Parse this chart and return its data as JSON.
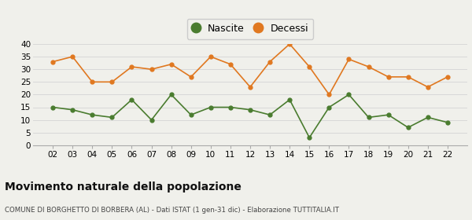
{
  "years": [
    2,
    3,
    4,
    5,
    6,
    7,
    8,
    9,
    10,
    11,
    12,
    13,
    14,
    15,
    16,
    17,
    18,
    19,
    20,
    21,
    22
  ],
  "nascite": [
    15,
    14,
    12,
    11,
    18,
    10,
    20,
    12,
    15,
    15,
    14,
    12,
    18,
    3,
    15,
    20,
    11,
    12,
    7,
    11,
    9
  ],
  "decessi": [
    33,
    35,
    25,
    25,
    31,
    30,
    32,
    27,
    35,
    32,
    23,
    33,
    40,
    31,
    20,
    34,
    31,
    27,
    27,
    23,
    27
  ],
  "nascite_color": "#4a7c2f",
  "decessi_color": "#e07820",
  "background_color": "#f0f0eb",
  "grid_color": "#d8d8d8",
  "title": "Movimento naturale della popolazione",
  "subtitle": "COMUNE DI BORGHETTO DI BORBERA (AL) - Dati ISTAT (1 gen-31 dic) - Elaborazione TUTTITALIA.IT",
  "legend_nascite": "Nascite",
  "legend_decessi": "Decessi",
  "ylim": [
    0,
    40
  ],
  "yticks": [
    0,
    5,
    10,
    15,
    20,
    25,
    30,
    35,
    40
  ]
}
